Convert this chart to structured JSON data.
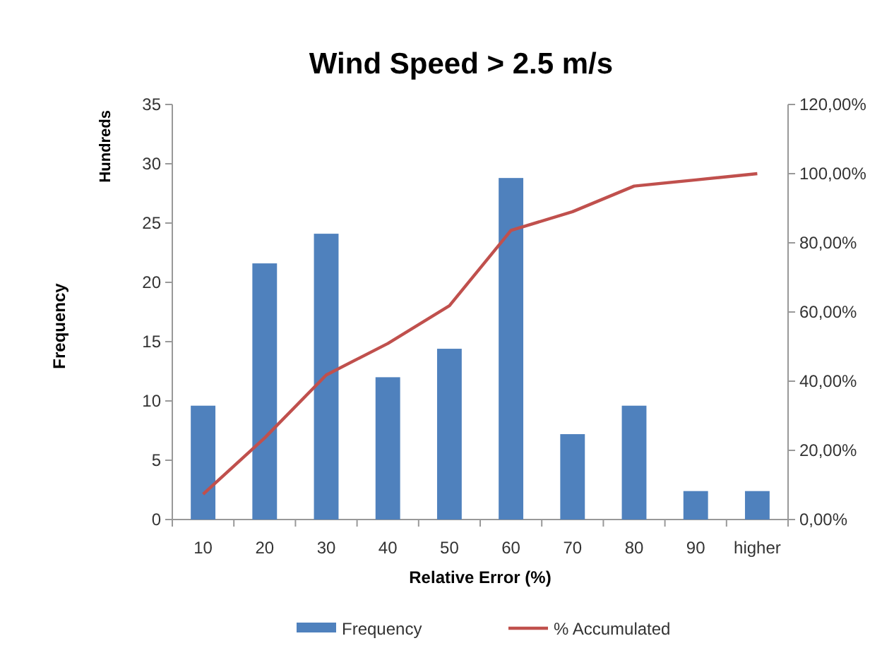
{
  "chart_data": {
    "type": "bar",
    "title": "Wind Speed > 2.5 m/s",
    "xlabel": "Relative Error (%)",
    "ylabel": "Frequency",
    "annotations": [
      "Hundreds"
    ],
    "categories": [
      "10",
      "20",
      "30",
      "40",
      "50",
      "60",
      "70",
      "80",
      "90",
      "higher"
    ],
    "series": [
      {
        "name": "Frequency",
        "color": "#4f81bd",
        "values": [
          9.6,
          21.6,
          24.1,
          12,
          14.4,
          28.8,
          7.2,
          9.6,
          2.4,
          2.4
        ]
      },
      {
        "name": "% Accumulated",
        "type": "line",
        "axis": "y2",
        "color": "#c0504d",
        "values": [
          7.3,
          23.6,
          41.8,
          50.9,
          61.8,
          83.6,
          89.0,
          96.4,
          98.2,
          100
        ]
      }
    ],
    "ylim": [
      0,
      35
    ],
    "yticks": [
      0,
      5,
      10,
      15,
      20,
      25,
      30,
      35
    ],
    "y2lim": [
      0,
      120
    ],
    "y2ticks": [
      {
        "value": 0,
        "label": "0,00%"
      },
      {
        "value": 20,
        "label": "20,00%"
      },
      {
        "value": 40,
        "label": "40,00%"
      },
      {
        "value": 60,
        "label": "60,00%"
      },
      {
        "value": 80,
        "label": "80,00%"
      },
      {
        "value": 100,
        "label": "100,00%"
      },
      {
        "value": 120,
        "label": "120,00%"
      }
    ],
    "grid": false,
    "legend": "bottom",
    "marker": "none",
    "line_style": "solid"
  }
}
